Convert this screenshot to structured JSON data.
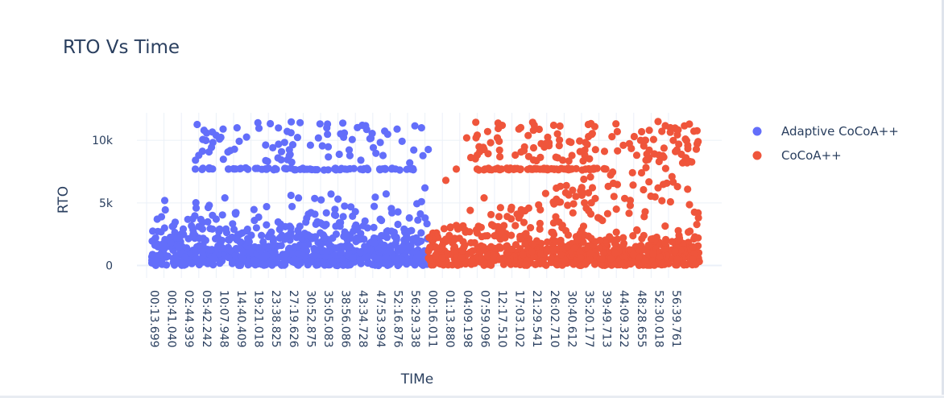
{
  "chart_data": {
    "type": "scatter",
    "title": "RTO Vs Time",
    "xlabel": "TIMe",
    "ylabel": "RTO",
    "ylim": [
      -1000,
      12200
    ],
    "y_ticks": [
      0,
      5000,
      10000
    ],
    "y_tick_labels": [
      "0",
      "5k",
      "10k"
    ],
    "x_tick_labels": [
      "00:13.699",
      "00:41.040",
      "02:44.939",
      "05:42.242",
      "10:07.948",
      "14:40.409",
      "19:21.018",
      "23:38.825",
      "27:19.626",
      "30:52.875",
      "35:05.083",
      "38:56.086",
      "43:34.728",
      "47:53.994",
      "52:16.876",
      "56:29.338",
      "00:16.011",
      "01:13.880",
      "04:09.198",
      "07:59.096",
      "12:17.510",
      "17:03.102",
      "21:29.541",
      "26:02.710",
      "30:40.612",
      "35:20.177",
      "39:49.713",
      "44:09.322",
      "48:28.655",
      "52:30.018",
      "56:39.761"
    ],
    "legend_position": "top-right",
    "grid": true,
    "series": [
      {
        "name": "Adaptive CoCoA++",
        "color": "#636efa",
        "x_range": [
          0.3,
          16.2
        ],
        "x": [
          0.3,
          0.5,
          0.8,
          1.0,
          1.4,
          1.9,
          2.3,
          2.7,
          3.0,
          3.4,
          3.6,
          4.0,
          4.2,
          4.5,
          4.8,
          5.1,
          5.5,
          5.9,
          6.2,
          6.6,
          6.9,
          7.3,
          7.7,
          8.0,
          8.3,
          8.7,
          9.0,
          9.3,
          9.7,
          10.0,
          10.3,
          10.6,
          10.9,
          11.3,
          11.7,
          12.0,
          12.3,
          12.7,
          13.1,
          13.5,
          13.8,
          14.1,
          14.5,
          14.8,
          15.1,
          15.5,
          15.8,
          16.1,
          2.8,
          3.0,
          3.3,
          3.6,
          4.0,
          4.4,
          4.7,
          5.2,
          5.7,
          6.4,
          7.4,
          8.3,
          9.4,
          10.4,
          11.4,
          12.4,
          13.4,
          14.4,
          15.2,
          15.8,
          16.0
        ],
        "y": [
          200,
          400,
          900,
          1300,
          1800,
          2200,
          1400,
          2600,
          3100,
          2000,
          4800,
          3700,
          2900,
          5400,
          1200,
          4200,
          2600,
          1900,
          3600,
          2400,
          4700,
          1700,
          3300,
          900,
          5600,
          2800,
          1600,
          4100,
          2300,
          3400,
          1100,
          5700,
          2500,
          3900,
          1500,
          4300,
          2100,
          3000,
          1800,
          3600,
          2700,
          4200,
          1300,
          2900,
          3800,
          2200,
          5100,
          1000,
          7700,
          8800,
          10800,
          7800,
          10400,
          10900,
          7700,
          11000,
          7800,
          11400,
          7700,
          10600,
          7700,
          11300,
          7700,
          11200,
          7700,
          10900,
          7700,
          11000,
          6200
        ],
        "clusters": {
          "band_low": [
            0,
            2500
          ],
          "band_flat": 7700,
          "band_high": [
            8800,
            11500
          ]
        }
      },
      {
        "name": "CoCoA++",
        "color": "#ef553b",
        "x_range": [
          16.2,
          31.8
        ],
        "x": [
          16.3,
          16.6,
          17.0,
          17.4,
          17.8,
          18.2,
          18.6,
          19.0,
          19.4,
          19.8,
          20.2,
          20.6,
          21.0,
          21.4,
          21.8,
          22.2,
          22.6,
          23.0,
          23.4,
          23.8,
          24.2,
          24.6,
          25.0,
          25.4,
          25.8,
          26.2,
          26.6,
          27.0,
          27.4,
          27.8,
          28.2,
          28.6,
          29.0,
          29.4,
          29.8,
          30.2,
          30.6,
          31.0,
          31.4,
          31.7,
          17.2,
          17.8,
          18.4,
          19.0,
          19.6,
          20.4,
          21.4,
          22.4,
          23.4,
          24.4,
          25.4,
          26.4,
          27.4,
          28.4,
          29.4,
          30.4,
          31.2,
          31.7
        ],
        "y": [
          400,
          800,
          1600,
          2400,
          3200,
          1900,
          4400,
          2600,
          5400,
          1500,
          3100,
          2200,
          1300,
          3800,
          2500,
          1700,
          2900,
          1100,
          3400,
          2000,
          4800,
          1400,
          2700,
          5800,
          1900,
          3600,
          2300,
          4500,
          1600,
          5200,
          2800,
          3900,
          2100,
          6200,
          1800,
          7100,
          2400,
          8600,
          1500,
          2200,
          6800,
          7700,
          10200,
          7700,
          10700,
          7700,
          10900,
          7700,
          11200,
          7700,
          10300,
          7700,
          9600,
          10000,
          11500,
          9100,
          11300,
          9900
        ],
        "clusters": {
          "band_low": [
            0,
            2500
          ],
          "band_flat": 7700,
          "band_rising": [
            2500,
            11500
          ]
        }
      }
    ]
  }
}
